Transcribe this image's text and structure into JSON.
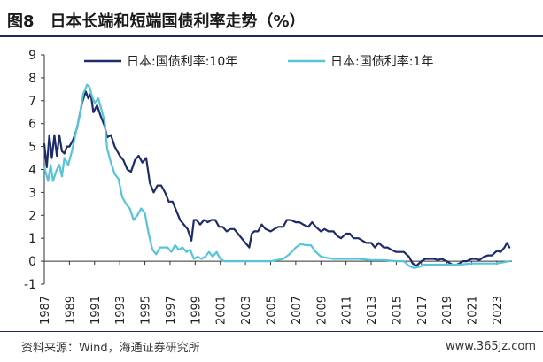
{
  "title": "图8　日本长端和短端国债利率走势（%）",
  "source": "资料来源：Wind，海通证券研究所",
  "watermark": "www.365jz.com",
  "chart_data": {
    "type": "line",
    "xlabel": "",
    "ylabel": "",
    "xlim": [
      1987,
      2024.2
    ],
    "ylim": [
      -1,
      9
    ],
    "yticks": [
      -1,
      0,
      1,
      2,
      3,
      4,
      5,
      6,
      7,
      8,
      9
    ],
    "xticks": [
      1987,
      1989,
      1991,
      1993,
      1995,
      1997,
      1999,
      2001,
      2003,
      2005,
      2007,
      2009,
      2011,
      2013,
      2015,
      2017,
      2019,
      2021,
      2023
    ],
    "xtick_labels": [
      "1987",
      "1989",
      "1991",
      "1993",
      "1995",
      "1997",
      "1999",
      "2001",
      "2003",
      "2005",
      "2007",
      "2009",
      "2011",
      "2013",
      "2015",
      "2017",
      "2019",
      "2021",
      "2023"
    ],
    "legend_position": "top",
    "grid": false,
    "series": [
      {
        "name": "日本:国债利率:10年",
        "color": "#1d2b6b",
        "x": [
          1987.0,
          1987.2,
          1987.4,
          1987.6,
          1987.8,
          1988.0,
          1988.2,
          1988.4,
          1988.6,
          1988.8,
          1989.0,
          1989.3,
          1989.6,
          1990.0,
          1990.3,
          1990.5,
          1990.7,
          1990.9,
          1991.2,
          1991.5,
          1991.8,
          1992.0,
          1992.3,
          1992.6,
          1993.0,
          1993.3,
          1993.6,
          1993.9,
          1994.2,
          1994.5,
          1994.8,
          1995.1,
          1995.4,
          1995.7,
          1996.0,
          1996.3,
          1996.6,
          1996.9,
          1997.2,
          1997.5,
          1997.8,
          1998.1,
          1998.4,
          1998.7,
          1998.9,
          1999.1,
          1999.4,
          1999.7,
          2000.0,
          2000.3,
          2000.6,
          2000.9,
          2001.2,
          2001.5,
          2001.8,
          2002.1,
          2002.4,
          2002.7,
          2003.0,
          2003.3,
          2003.5,
          2003.7,
          2004.0,
          2004.3,
          2004.6,
          2005.0,
          2005.3,
          2005.6,
          2006.0,
          2006.3,
          2006.6,
          2007.0,
          2007.3,
          2007.6,
          2008.0,
          2008.3,
          2008.6,
          2009.0,
          2009.3,
          2009.6,
          2010.0,
          2010.3,
          2010.6,
          2011.0,
          2011.3,
          2011.6,
          2012.0,
          2012.3,
          2012.6,
          2013.0,
          2013.3,
          2013.6,
          2014.0,
          2014.3,
          2014.6,
          2015.0,
          2015.3,
          2015.6,
          2016.0,
          2016.3,
          2016.6,
          2017.0,
          2017.3,
          2017.6,
          2018.0,
          2018.3,
          2018.6,
          2019.0,
          2019.3,
          2019.6,
          2020.0,
          2020.3,
          2020.6,
          2021.0,
          2021.3,
          2021.6,
          2022.0,
          2022.3,
          2022.6,
          2023.0,
          2023.3,
          2023.6,
          2023.8,
          2024.0
        ],
        "values": [
          5.1,
          4.1,
          5.5,
          4.5,
          5.5,
          4.6,
          5.5,
          4.8,
          4.7,
          5.0,
          5.0,
          5.3,
          5.8,
          6.9,
          7.4,
          7.1,
          7.3,
          6.5,
          6.8,
          6.3,
          5.9,
          5.4,
          5.5,
          5.0,
          4.6,
          4.4,
          4.0,
          3.9,
          4.4,
          4.6,
          4.3,
          4.5,
          3.4,
          3.0,
          3.3,
          3.3,
          3.0,
          2.6,
          2.6,
          2.2,
          1.8,
          1.6,
          1.4,
          0.9,
          1.8,
          1.8,
          1.6,
          1.8,
          1.7,
          1.8,
          1.8,
          1.5,
          1.5,
          1.3,
          1.4,
          1.4,
          1.2,
          1.0,
          0.8,
          0.6,
          1.2,
          1.3,
          1.3,
          1.6,
          1.4,
          1.3,
          1.4,
          1.5,
          1.5,
          1.8,
          1.8,
          1.7,
          1.7,
          1.6,
          1.5,
          1.7,
          1.5,
          1.3,
          1.4,
          1.3,
          1.3,
          1.1,
          1.0,
          1.2,
          1.2,
          1.0,
          1.0,
          0.9,
          0.8,
          0.8,
          0.6,
          0.8,
          0.6,
          0.6,
          0.5,
          0.4,
          0.4,
          0.4,
          0.2,
          -0.1,
          -0.2,
          0.0,
          0.1,
          0.1,
          0.1,
          0.05,
          0.1,
          0.0,
          -0.1,
          -0.2,
          -0.1,
          0.0,
          0.0,
          0.1,
          0.1,
          0.05,
          0.2,
          0.25,
          0.25,
          0.45,
          0.4,
          0.6,
          0.8,
          0.6
        ]
      },
      {
        "name": "日本:国债利率:1年",
        "color": "#57c5d8",
        "x": [
          1987.0,
          1987.3,
          1987.5,
          1987.7,
          1988.0,
          1988.2,
          1988.4,
          1988.6,
          1988.9,
          1989.2,
          1989.5,
          1989.8,
          1990.1,
          1990.4,
          1990.6,
          1990.8,
          1991.0,
          1991.3,
          1991.5,
          1991.8,
          1992.0,
          1992.3,
          1992.6,
          1992.9,
          1993.2,
          1993.5,
          1993.8,
          1994.1,
          1994.4,
          1994.7,
          1995.0,
          1995.3,
          1995.6,
          1995.9,
          1996.2,
          1996.5,
          1996.8,
          1997.1,
          1997.4,
          1997.7,
          1998.0,
          1998.3,
          1998.6,
          1998.9,
          1999.2,
          1999.5,
          1999.8,
          2000.1,
          2000.4,
          2000.7,
          2001.0,
          2001.3,
          2001.6,
          2002.0,
          2003.0,
          2004.0,
          2005.0,
          2006.0,
          2006.5,
          2007.0,
          2007.4,
          2007.8,
          2008.2,
          2008.6,
          2009.0,
          2009.4,
          2010.0,
          2011.0,
          2012.0,
          2013.0,
          2014.0,
          2015.0,
          2015.6,
          2016.0,
          2016.4,
          2016.8,
          2017.2,
          2017.6,
          2018.0,
          2019.0,
          2020.0,
          2021.0,
          2022.0,
          2023.0,
          2023.5,
          2024.0
        ],
        "values": [
          4.1,
          3.5,
          4.2,
          3.5,
          4.0,
          4.2,
          3.7,
          4.5,
          4.2,
          4.8,
          5.6,
          6.3,
          7.3,
          7.7,
          7.6,
          7.2,
          6.9,
          7.1,
          6.7,
          6.1,
          4.9,
          4.3,
          3.8,
          3.6,
          2.8,
          2.5,
          2.3,
          1.8,
          2.0,
          2.3,
          2.1,
          1.2,
          0.5,
          0.3,
          0.6,
          0.6,
          0.6,
          0.4,
          0.7,
          0.5,
          0.6,
          0.4,
          0.5,
          0.1,
          0.2,
          0.1,
          0.2,
          0.4,
          0.2,
          0.4,
          0.1,
          0.0,
          0.0,
          0.0,
          0.0,
          0.0,
          0.0,
          0.1,
          0.3,
          0.6,
          0.75,
          0.7,
          0.7,
          0.4,
          0.2,
          0.15,
          0.1,
          0.1,
          0.1,
          0.05,
          0.05,
          0.0,
          0.0,
          -0.2,
          -0.3,
          -0.25,
          -0.15,
          -0.15,
          -0.15,
          -0.15,
          -0.15,
          -0.1,
          -0.1,
          -0.1,
          -0.05,
          0.0
        ]
      }
    ]
  }
}
